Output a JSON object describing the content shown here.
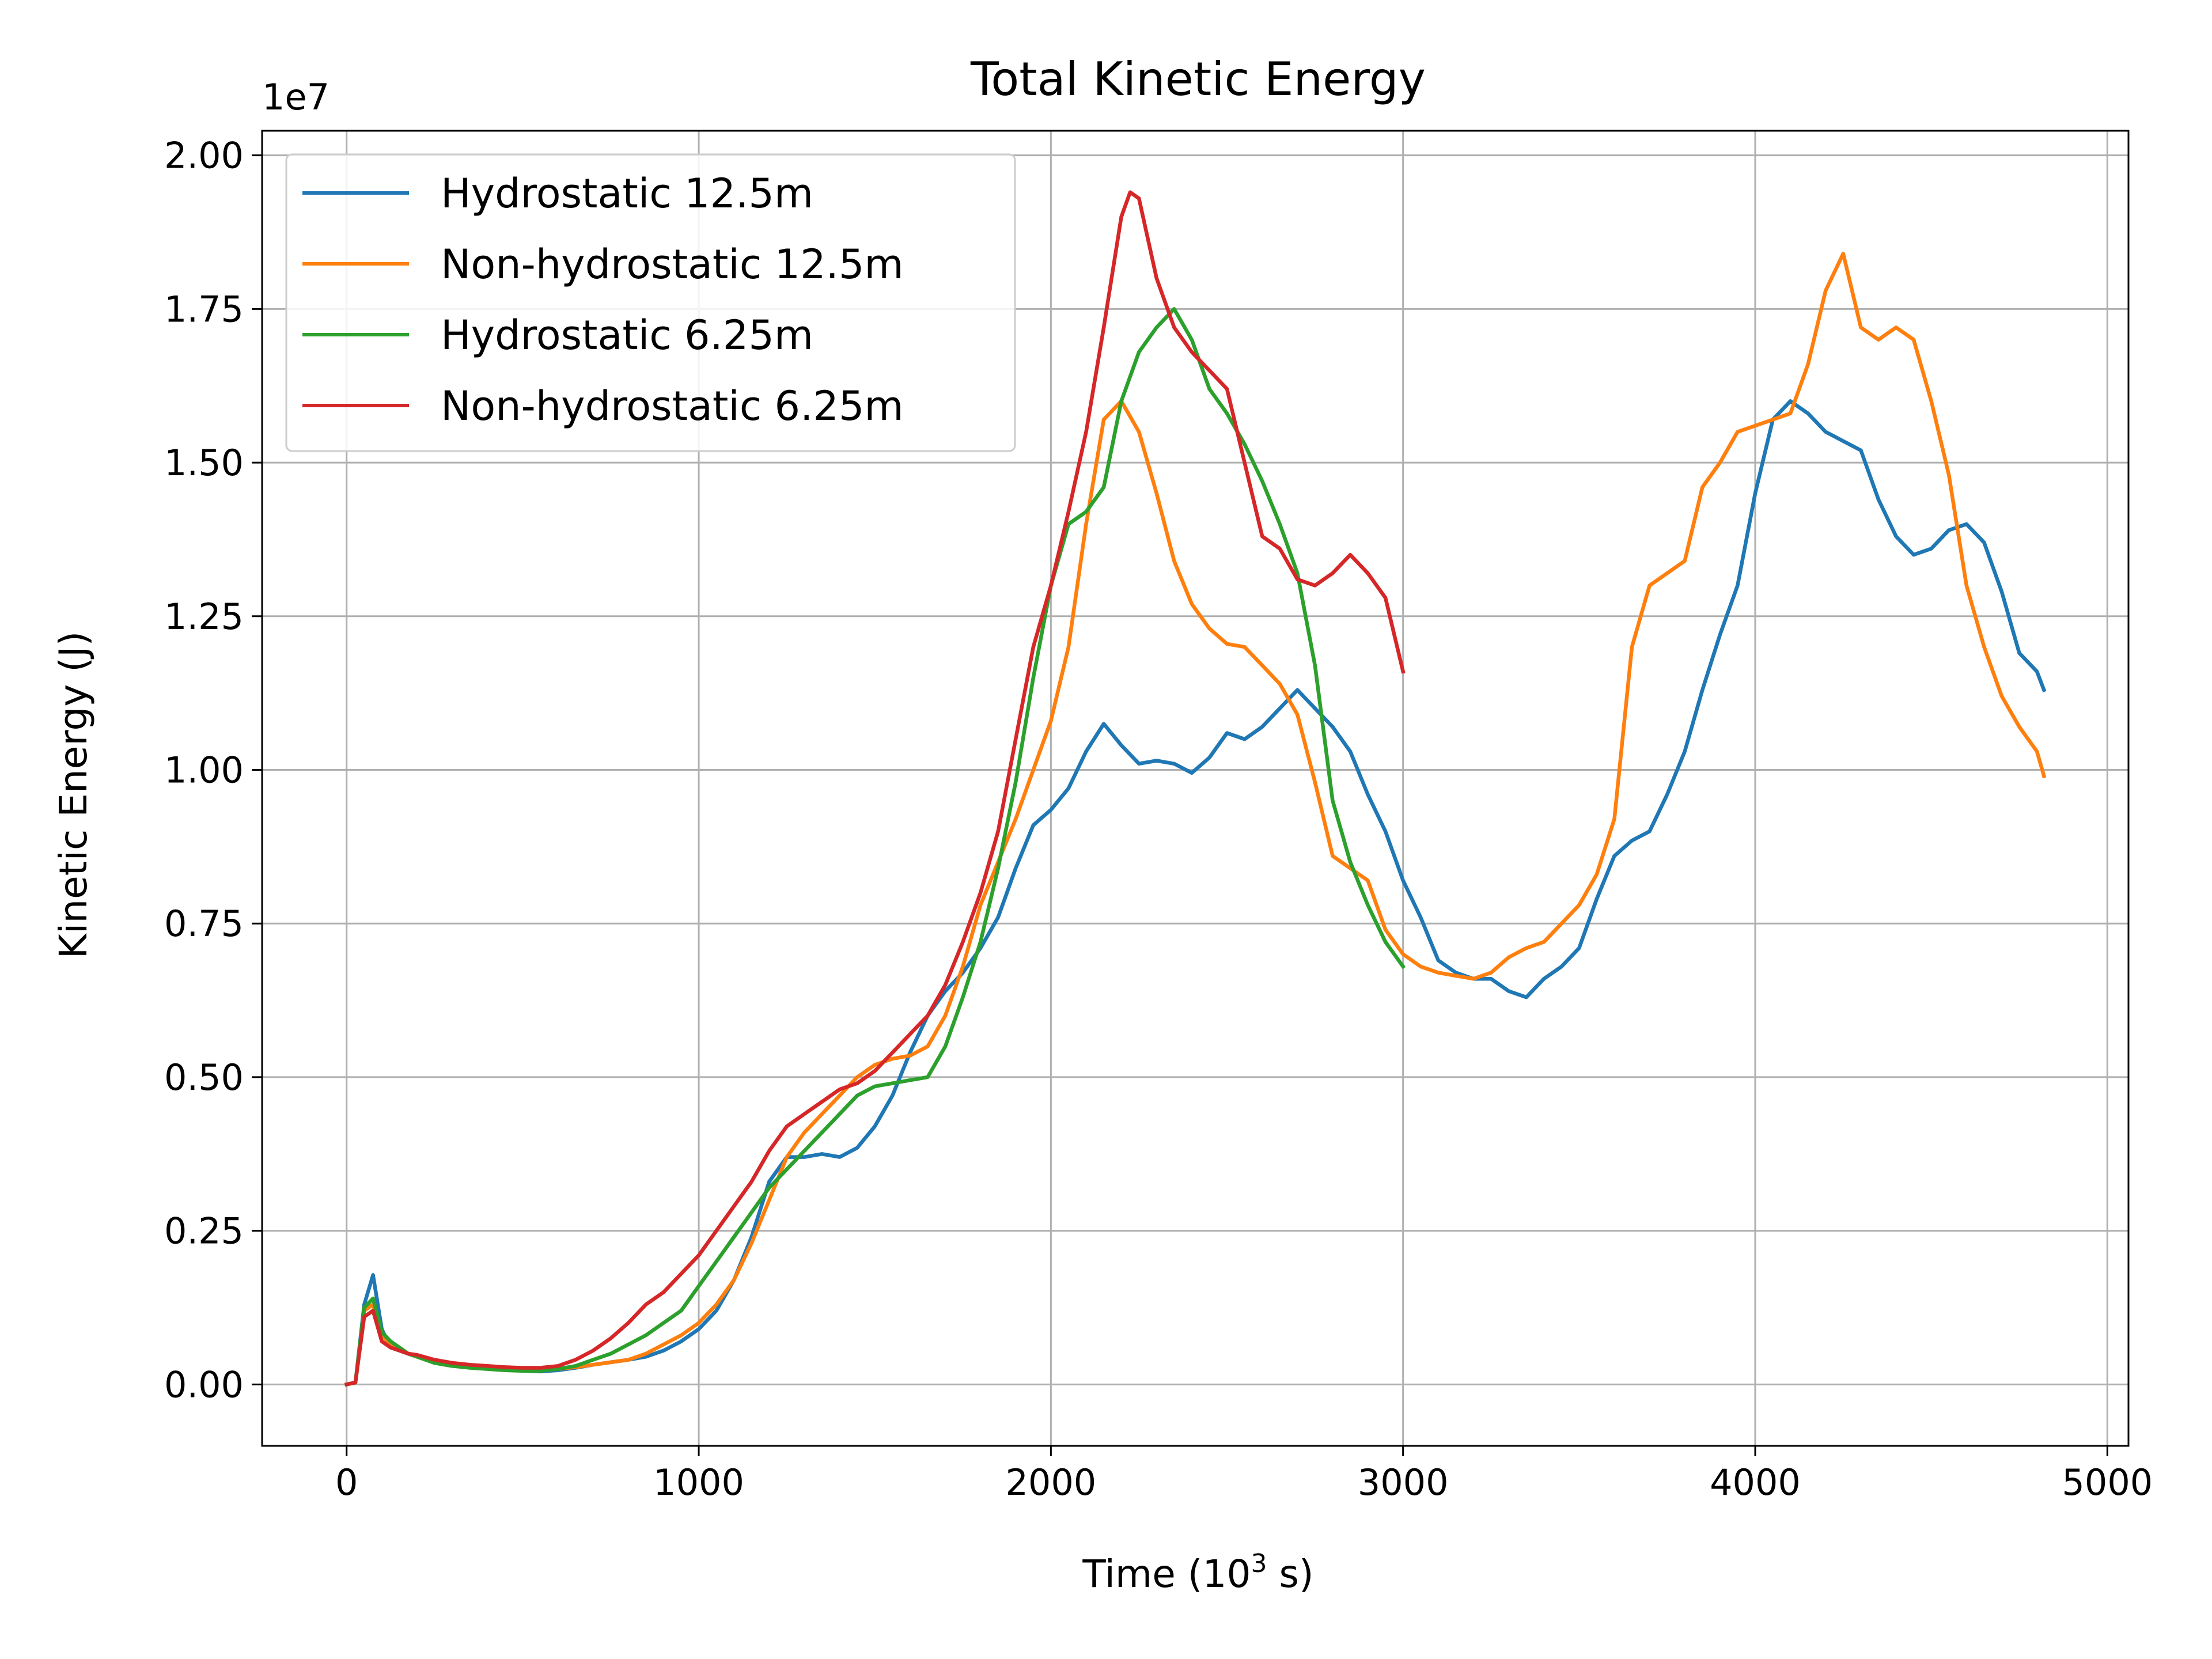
{
  "chart_data": {
    "type": "line",
    "title": "Total Kinetic Energy",
    "xlabel_main": "Time (10",
    "xlabel_sup": "3",
    "xlabel_tail": " s)",
    "ylabel": "Kinetic Energy (J)",
    "y_offset_label": "1e7",
    "xlim": [
      -240,
      5060
    ],
    "ylim": [
      -0.1,
      2.04
    ],
    "x_ticks": [
      0,
      1000,
      2000,
      3000,
      4000,
      5000
    ],
    "x_tick_labels": [
      "0",
      "1000",
      "2000",
      "3000",
      "4000",
      "5000"
    ],
    "y_ticks": [
      0.0,
      0.25,
      0.5,
      0.75,
      1.0,
      1.25,
      1.5,
      1.75,
      2.0
    ],
    "y_tick_labels": [
      "0.00",
      "0.25",
      "0.50",
      "0.75",
      "1.00",
      "1.25",
      "1.50",
      "1.75",
      "2.00"
    ],
    "grid": true,
    "legend_position": "top-left",
    "series": [
      {
        "name": "Hydrostatic 12.5m",
        "color": "#1f77b4",
        "x": [
          0,
          25,
          50,
          75,
          100,
          125,
          150,
          175,
          200,
          250,
          300,
          350,
          400,
          450,
          500,
          550,
          600,
          650,
          700,
          750,
          800,
          850,
          900,
          950,
          1000,
          1050,
          1100,
          1150,
          1200,
          1250,
          1300,
          1350,
          1400,
          1450,
          1500,
          1550,
          1600,
          1650,
          1700,
          1750,
          1800,
          1850,
          1900,
          1950,
          2000,
          2050,
          2100,
          2150,
          2200,
          2250,
          2300,
          2350,
          2400,
          2450,
          2500,
          2550,
          2600,
          2650,
          2700,
          2750,
          2800,
          2850,
          2900,
          2950,
          3000,
          3050,
          3100,
          3150,
          3200,
          3250,
          3300,
          3350,
          3400,
          3450,
          3500,
          3550,
          3600,
          3650,
          3700,
          3750,
          3800,
          3850,
          3900,
          3950,
          4000,
          4050,
          4100,
          4150,
          4200,
          4250,
          4300,
          4350,
          4400,
          4450,
          4500,
          4550,
          4600,
          4650,
          4700,
          4750,
          4800,
          4820
        ],
        "y": [
          0.0,
          0.003,
          0.13,
          0.178,
          0.09,
          0.06,
          0.055,
          0.05,
          0.045,
          0.035,
          0.03,
          0.028,
          0.026,
          0.024,
          0.022,
          0.021,
          0.023,
          0.027,
          0.032,
          0.036,
          0.04,
          0.045,
          0.055,
          0.07,
          0.09,
          0.12,
          0.17,
          0.24,
          0.33,
          0.37,
          0.37,
          0.375,
          0.37,
          0.385,
          0.42,
          0.47,
          0.54,
          0.6,
          0.64,
          0.67,
          0.71,
          0.76,
          0.84,
          0.91,
          0.935,
          0.97,
          1.03,
          1.075,
          1.04,
          1.01,
          1.015,
          1.01,
          0.995,
          1.02,
          1.06,
          1.05,
          1.07,
          1.1,
          1.13,
          1.1,
          1.07,
          1.03,
          0.96,
          0.9,
          0.82,
          0.76,
          0.69,
          0.67,
          0.66,
          0.66,
          0.64,
          0.63,
          0.66,
          0.68,
          0.71,
          0.79,
          0.86,
          0.885,
          0.9,
          0.96,
          1.03,
          1.13,
          1.22,
          1.3,
          1.45,
          1.57,
          1.6,
          1.58,
          1.55,
          1.535,
          1.52,
          1.44,
          1.38,
          1.35,
          1.36,
          1.39,
          1.4,
          1.37,
          1.29,
          1.19,
          1.16,
          1.13
        ]
      },
      {
        "name": "Non-hydrostatic 12.5m",
        "color": "#ff7f0e",
        "x": [
          0,
          25,
          50,
          75,
          100,
          125,
          150,
          175,
          200,
          250,
          300,
          350,
          400,
          450,
          500,
          550,
          600,
          650,
          700,
          750,
          800,
          850,
          900,
          950,
          1000,
          1050,
          1100,
          1150,
          1200,
          1250,
          1300,
          1350,
          1400,
          1450,
          1500,
          1550,
          1600,
          1650,
          1700,
          1750,
          1800,
          1850,
          1900,
          1950,
          2000,
          2050,
          2100,
          2150,
          2200,
          2250,
          2300,
          2350,
          2400,
          2450,
          2500,
          2550,
          2600,
          2650,
          2700,
          2750,
          2800,
          2850,
          2900,
          2950,
          3000,
          3050,
          3100,
          3150,
          3200,
          3250,
          3300,
          3350,
          3400,
          3450,
          3500,
          3550,
          3600,
          3650,
          3700,
          3750,
          3800,
          3850,
          3900,
          3950,
          4000,
          4050,
          4100,
          4150,
          4200,
          4250,
          4300,
          4350,
          4400,
          4450,
          4500,
          4550,
          4600,
          4650,
          4700,
          4750,
          4800,
          4820
        ],
        "y": [
          0.0,
          0.003,
          0.12,
          0.13,
          0.08,
          0.065,
          0.06,
          0.05,
          0.045,
          0.035,
          0.03,
          0.028,
          0.026,
          0.024,
          0.023,
          0.023,
          0.025,
          0.028,
          0.032,
          0.036,
          0.04,
          0.05,
          0.065,
          0.08,
          0.1,
          0.13,
          0.17,
          0.23,
          0.3,
          0.37,
          0.41,
          0.44,
          0.47,
          0.5,
          0.52,
          0.53,
          0.535,
          0.55,
          0.6,
          0.68,
          0.78,
          0.85,
          0.92,
          1.0,
          1.08,
          1.2,
          1.4,
          1.57,
          1.6,
          1.55,
          1.45,
          1.34,
          1.27,
          1.23,
          1.205,
          1.2,
          1.17,
          1.14,
          1.09,
          0.98,
          0.86,
          0.84,
          0.82,
          0.74,
          0.7,
          0.68,
          0.67,
          0.665,
          0.66,
          0.67,
          0.695,
          0.71,
          0.72,
          0.75,
          0.78,
          0.83,
          0.92,
          1.2,
          1.3,
          1.32,
          1.34,
          1.46,
          1.5,
          1.55,
          1.56,
          1.57,
          1.58,
          1.66,
          1.78,
          1.84,
          1.72,
          1.7,
          1.72,
          1.7,
          1.6,
          1.48,
          1.3,
          1.2,
          1.12,
          1.07,
          1.03,
          0.99
        ]
      },
      {
        "name": "Hydrostatic 6.25m",
        "color": "#2ca02c",
        "x": [
          0,
          25,
          50,
          75,
          100,
          125,
          150,
          175,
          200,
          250,
          300,
          350,
          400,
          450,
          500,
          550,
          600,
          650,
          700,
          750,
          800,
          850,
          900,
          950,
          1000,
          1050,
          1100,
          1150,
          1200,
          1250,
          1300,
          1350,
          1400,
          1450,
          1500,
          1550,
          1600,
          1650,
          1700,
          1750,
          1800,
          1850,
          1900,
          1950,
          2000,
          2050,
          2100,
          2150,
          2200,
          2250,
          2300,
          2350,
          2400,
          2450,
          2500,
          2550,
          2600,
          2650,
          2700,
          2750,
          2800,
          2850,
          2900,
          2950,
          3000
        ],
        "y": [
          0.0,
          0.003,
          0.125,
          0.14,
          0.085,
          0.07,
          0.06,
          0.05,
          0.045,
          0.035,
          0.03,
          0.027,
          0.025,
          0.023,
          0.022,
          0.022,
          0.025,
          0.03,
          0.04,
          0.05,
          0.065,
          0.08,
          0.1,
          0.12,
          0.16,
          0.2,
          0.24,
          0.28,
          0.32,
          0.35,
          0.38,
          0.41,
          0.44,
          0.47,
          0.485,
          0.49,
          0.495,
          0.5,
          0.55,
          0.63,
          0.72,
          0.84,
          0.98,
          1.15,
          1.3,
          1.4,
          1.42,
          1.46,
          1.6,
          1.68,
          1.72,
          1.75,
          1.7,
          1.62,
          1.58,
          1.53,
          1.47,
          1.4,
          1.32,
          1.17,
          0.95,
          0.85,
          0.78,
          0.72,
          0.68
        ]
      },
      {
        "name": "Non-hydrostatic 6.25m",
        "color": "#d62728",
        "x": [
          0,
          25,
          50,
          75,
          100,
          125,
          150,
          175,
          200,
          250,
          300,
          350,
          400,
          450,
          500,
          550,
          600,
          650,
          700,
          750,
          800,
          850,
          900,
          950,
          1000,
          1050,
          1100,
          1150,
          1200,
          1250,
          1300,
          1350,
          1400,
          1450,
          1500,
          1550,
          1600,
          1650,
          1700,
          1750,
          1800,
          1850,
          1900,
          1950,
          2000,
          2050,
          2100,
          2150,
          2200,
          2225,
          2250,
          2300,
          2350,
          2400,
          2450,
          2500,
          2550,
          2600,
          2650,
          2700,
          2750,
          2800,
          2850,
          2900,
          2950,
          3000
        ],
        "y": [
          0.0,
          0.003,
          0.11,
          0.12,
          0.07,
          0.06,
          0.055,
          0.05,
          0.048,
          0.04,
          0.035,
          0.032,
          0.03,
          0.028,
          0.027,
          0.027,
          0.03,
          0.04,
          0.055,
          0.075,
          0.1,
          0.13,
          0.15,
          0.18,
          0.21,
          0.25,
          0.29,
          0.33,
          0.38,
          0.42,
          0.44,
          0.46,
          0.48,
          0.49,
          0.51,
          0.54,
          0.57,
          0.6,
          0.65,
          0.72,
          0.8,
          0.9,
          1.05,
          1.2,
          1.3,
          1.42,
          1.55,
          1.72,
          1.9,
          1.94,
          1.93,
          1.8,
          1.72,
          1.68,
          1.65,
          1.62,
          1.5,
          1.38,
          1.36,
          1.31,
          1.3,
          1.32,
          1.35,
          1.32,
          1.28,
          1.16
        ]
      }
    ]
  }
}
